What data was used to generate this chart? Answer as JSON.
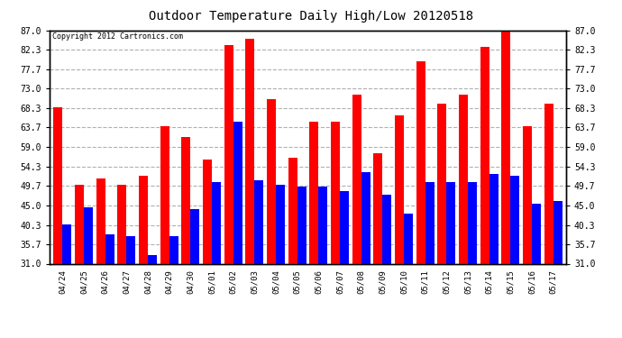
{
  "title": "Outdoor Temperature Daily High/Low 20120518",
  "copyright": "Copyright 2012 Cartronics.com",
  "dates": [
    "04/24",
    "04/25",
    "04/26",
    "04/27",
    "04/28",
    "04/29",
    "04/30",
    "05/01",
    "05/02",
    "05/03",
    "05/04",
    "05/05",
    "05/06",
    "05/07",
    "05/08",
    "05/09",
    "05/10",
    "05/11",
    "05/12",
    "05/13",
    "05/14",
    "05/15",
    "05/16",
    "05/17"
  ],
  "highs": [
    68.5,
    50.0,
    51.5,
    50.0,
    52.0,
    64.0,
    61.5,
    56.0,
    83.5,
    85.0,
    70.5,
    56.5,
    65.0,
    65.0,
    71.5,
    57.5,
    66.5,
    79.5,
    69.5,
    71.5,
    83.0,
    87.0,
    64.0,
    69.5
  ],
  "lows": [
    40.5,
    44.5,
    38.0,
    37.5,
    33.0,
    37.5,
    44.0,
    50.5,
    65.0,
    51.0,
    50.0,
    49.5,
    49.5,
    48.5,
    53.0,
    47.5,
    43.0,
    50.5,
    50.5,
    50.5,
    52.5,
    52.0,
    45.5,
    46.0
  ],
  "high_color": "#ff0000",
  "low_color": "#0000ff",
  "background_color": "#ffffff",
  "grid_color": "#b0b0b0",
  "yticks": [
    31.0,
    35.7,
    40.3,
    45.0,
    49.7,
    54.3,
    59.0,
    63.7,
    68.3,
    73.0,
    77.7,
    82.3,
    87.0
  ],
  "ymin": 31.0,
  "ymax": 87.0,
  "bar_width": 0.42
}
